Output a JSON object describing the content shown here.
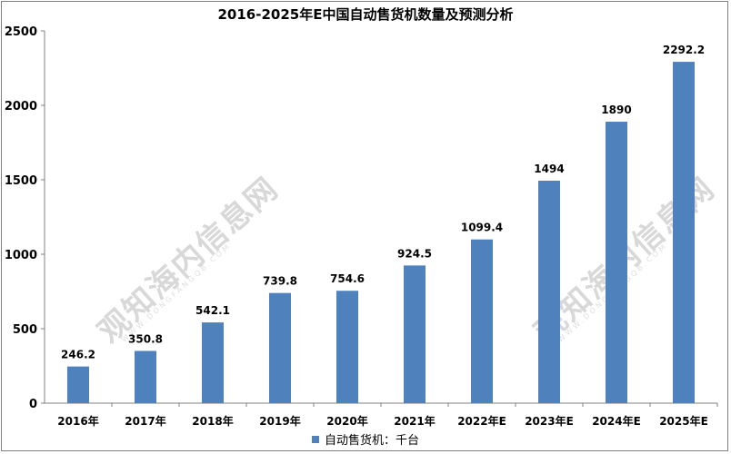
{
  "chart_data": {
    "type": "bar",
    "title": "2016-2025年E中国自动售货机数量及预测分析",
    "categories": [
      "2016年",
      "2017年",
      "2018年",
      "2019年",
      "2020年",
      "2021年",
      "2022年E",
      "2023年E",
      "2024年E",
      "2025年E"
    ],
    "series": [
      {
        "name": "自动售货机：千台",
        "values": [
          246.2,
          350.8,
          542.1,
          739.8,
          754.6,
          924.5,
          1099.4,
          1494,
          1890,
          2292.2
        ]
      }
    ],
    "value_labels": [
      "246.2",
      "350.8",
      "542.1",
      "739.8",
      "754.6",
      "924.5",
      "1099.4",
      "1494",
      "1890",
      "2292.2"
    ],
    "y_ticks": [
      "0",
      "500",
      "1000",
      "1500",
      "2000",
      "2500"
    ],
    "ylim": [
      0,
      2500
    ],
    "xlabel": "",
    "ylabel": "",
    "grid": false,
    "legend_position": "bottom",
    "bar_color": "#4f81bd"
  },
  "watermark": {
    "text": "观知海内信息网",
    "subtext": "WWW.DONGFANGQB.COM"
  }
}
